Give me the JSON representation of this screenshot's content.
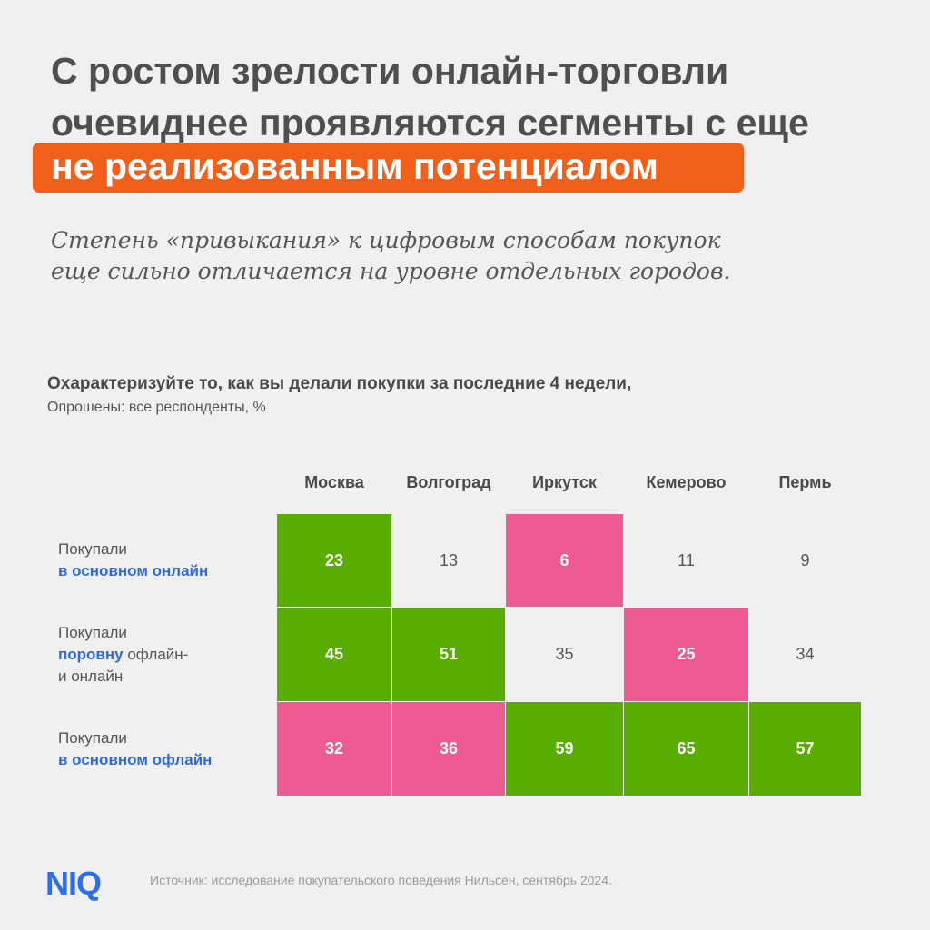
{
  "title": {
    "line1": "С ростом зрелости онлайн-торговли",
    "line2": "очевиднее проявляются сегменты с еще",
    "highlight": "не реализованным потенциалом"
  },
  "subtitle": {
    "line1": "Степень «привыкания» к цифровым способам покупок",
    "line2": "еще сильно отличается на уровне отдельных городов."
  },
  "colors": {
    "green": "#59ad00",
    "pink": "#ee5a92",
    "accent": "#f0601a",
    "highlight_text": "#2d6ae0"
  },
  "chart_data": {
    "type": "heatmap",
    "title": "Охарактеризуйте то, как вы делали покупки за последние 4 недели,",
    "subtitle": "Опрошены: все респонденты, %",
    "categories": [
      "Москва",
      "Волгоград",
      "Иркутск",
      "Кемерово",
      "Пермь"
    ],
    "rows": [
      {
        "prefix": "Покупали",
        "bold": "в основном онлайн",
        "rest": "",
        "line3": ""
      },
      {
        "prefix": "Покупали",
        "bold": "поровну",
        "rest": " офлайн-",
        "line3": "и онлайн"
      },
      {
        "prefix": "Покупали",
        "bold": "в основном офлайн",
        "rest": "",
        "line3": ""
      }
    ],
    "values": [
      [
        23,
        13,
        6,
        11,
        9
      ],
      [
        45,
        51,
        35,
        25,
        34
      ],
      [
        32,
        36,
        59,
        65,
        57
      ]
    ],
    "highlight": [
      [
        "green",
        "none",
        "pink",
        "none",
        "none"
      ],
      [
        "green",
        "green",
        "none",
        "pink",
        "none"
      ],
      [
        "pink",
        "pink",
        "green",
        "green",
        "green"
      ]
    ]
  },
  "footer": {
    "logo": "NIQ",
    "source": "Источник: исследование покупательского поведения Нильсен, сентябрь 2024."
  }
}
